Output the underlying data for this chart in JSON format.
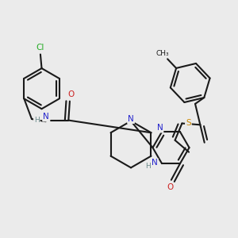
{
  "background_color": "#ebebeb",
  "bond_color": "#1a1a1a",
  "bond_lw": 1.5,
  "atom_colors": {
    "N": "#2222cc",
    "O": "#cc2222",
    "S": "#cc8800",
    "Cl": "#22aa22",
    "H": "#6a8a8a"
  },
  "figsize": [
    3.0,
    3.0
  ],
  "dpi": 100
}
